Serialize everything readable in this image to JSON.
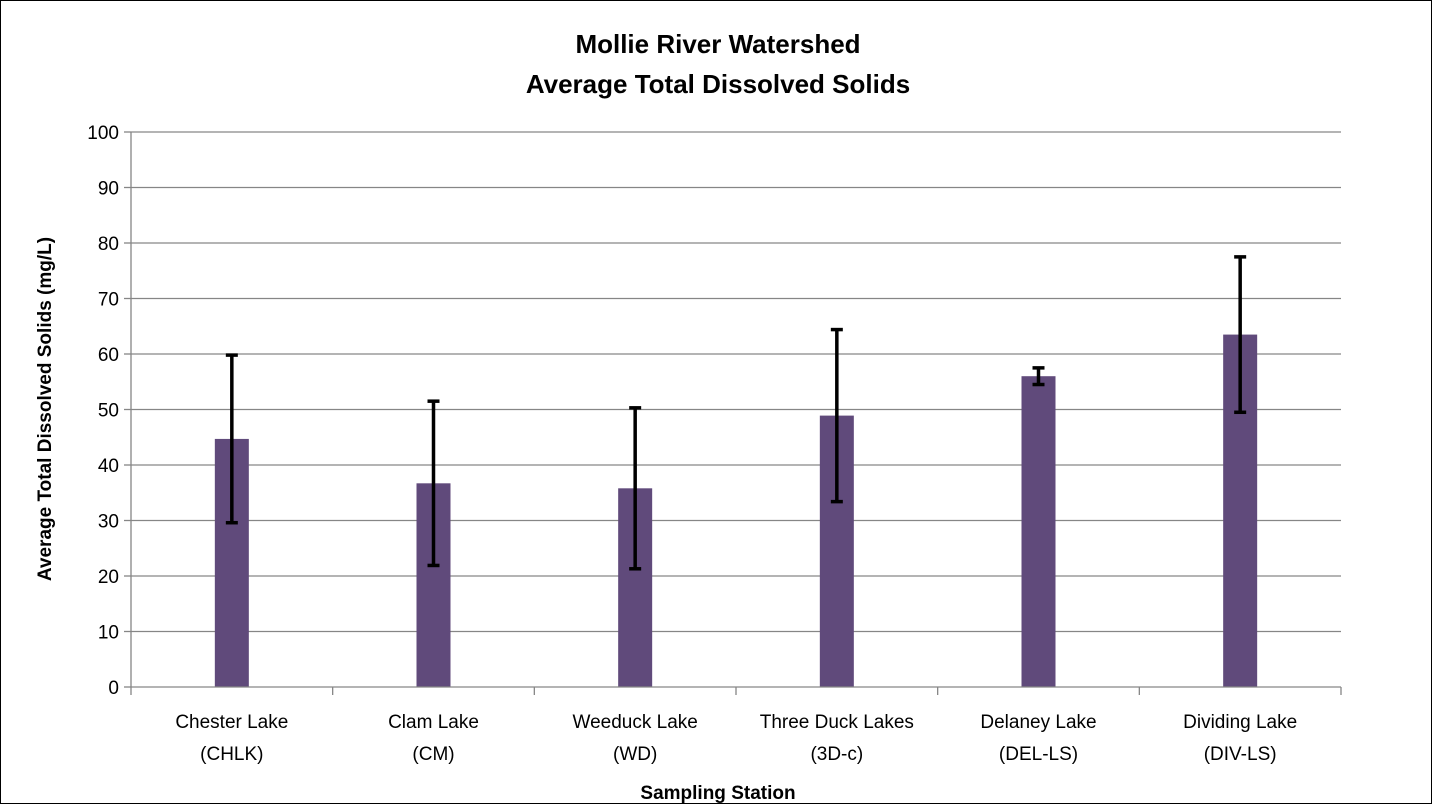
{
  "chart_data": {
    "type": "bar",
    "title": "Mollie River Watershed",
    "subtitle": "Average Total Dissolved Solids",
    "xlabel": "Sampling Station",
    "ylabel": "Average Total Dissolved Solids (mg/L)",
    "ylim": [
      0,
      100
    ],
    "yticks": [
      0,
      10,
      20,
      30,
      40,
      50,
      60,
      70,
      80,
      90,
      100
    ],
    "grid": true,
    "legend": "none",
    "categories": [
      [
        "Chester Lake",
        "(CHLK)"
      ],
      [
        "Clam Lake",
        "(CM)"
      ],
      [
        "Weeduck Lake",
        "(WD)"
      ],
      [
        "Three Duck Lakes",
        "(3D-c)"
      ],
      [
        "Delaney Lake",
        "(DEL-LS)"
      ],
      [
        "Dividing Lake",
        "(DIV-LS)"
      ]
    ],
    "series": [
      {
        "values": [
          44.7,
          36.7,
          35.8,
          48.9,
          56.0,
          63.5
        ],
        "error_low": [
          29.6,
          21.9,
          21.3,
          33.4,
          54.5,
          49.5
        ],
        "error_high": [
          59.8,
          51.5,
          50.3,
          64.4,
          57.5,
          77.5
        ],
        "color": "#604A7B"
      }
    ]
  }
}
